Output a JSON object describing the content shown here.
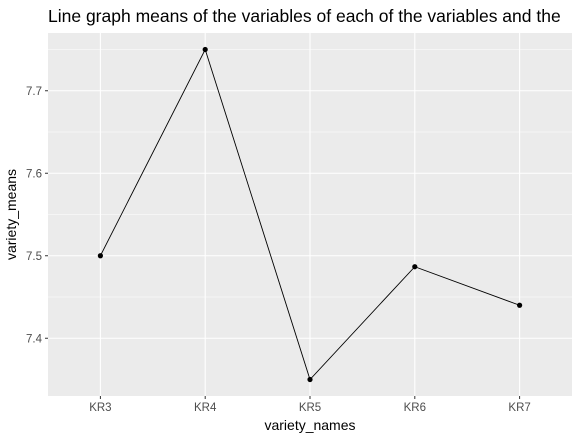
{
  "chart_data": {
    "type": "line",
    "title": "Line graph means of the variables of each of the variables and the",
    "xlabel": "variety_names",
    "ylabel": "variety_means",
    "categories": [
      "KR3",
      "KR4",
      "KR5",
      "KR6",
      "KR7"
    ],
    "values": [
      7.5,
      7.75,
      7.35,
      7.4867,
      7.44
    ],
    "yticks": [
      "7.4",
      "7.5",
      "7.6",
      "7.7"
    ],
    "ylim": [
      7.33,
      7.77
    ],
    "grid": true,
    "legend": "none",
    "colors": {
      "panel_background": "#ebebeb",
      "grid_major": "#ffffff",
      "line": "#000000",
      "points": "#000000",
      "tick_text": "#4d4d4d",
      "tick_marks": "#333333"
    }
  }
}
